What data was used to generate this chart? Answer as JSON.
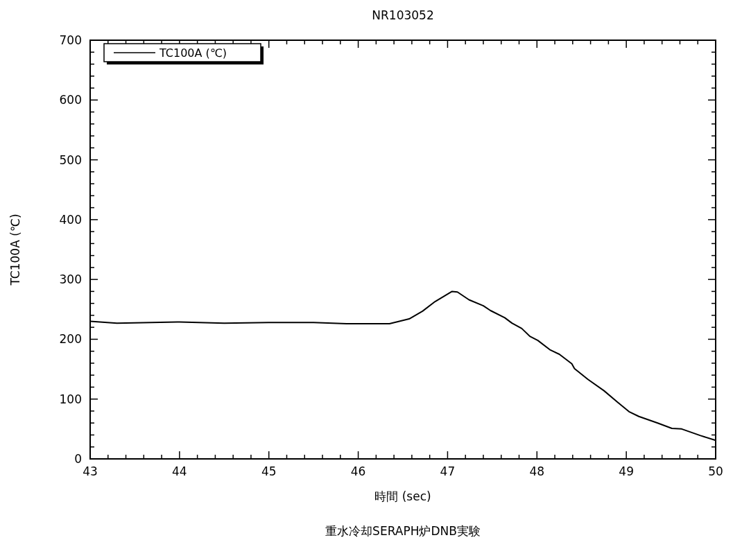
{
  "chart_data": {
    "type": "line",
    "title": "NR103052",
    "xlabel": "時間 (sec)",
    "ylabel": "TC100A (℃)",
    "annotations": [
      "重水冷却SERAPH炉DNB実験"
    ],
    "legend": "top left",
    "grid": false,
    "line_style": "solid",
    "marker": "none",
    "xlim": [
      43,
      50
    ],
    "ylim": [
      0,
      700
    ],
    "xticks": [
      43,
      {
        "value": 43.2,
        "label": null
      },
      {
        "value": 43.4,
        "label": null
      },
      {
        "value": 43.6,
        "label": null
      },
      {
        "value": 43.8,
        "label": null
      },
      44,
      {
        "value": 44.2,
        "label": null
      },
      {
        "value": 44.4,
        "label": null
      },
      {
        "value": 44.6,
        "label": null
      },
      {
        "value": 44.8,
        "label": null
      },
      45,
      {
        "value": 45.2,
        "label": null
      },
      {
        "value": 45.4,
        "label": null
      },
      {
        "value": 45.6,
        "label": null
      },
      {
        "value": 45.8,
        "label": null
      },
      46,
      {
        "value": 46.2,
        "label": null
      },
      {
        "value": 46.4,
        "label": null
      },
      {
        "value": 46.6,
        "label": null
      },
      {
        "value": 46.8,
        "label": null
      },
      47,
      {
        "value": 47.2,
        "label": null
      },
      {
        "value": 47.4,
        "label": null
      },
      {
        "value": 47.6,
        "label": null
      },
      {
        "value": 47.8,
        "label": null
      },
      48,
      {
        "value": 48.2,
        "label": null
      },
      {
        "value": 48.4,
        "label": null
      },
      {
        "value": 48.6,
        "label": null
      },
      {
        "value": 48.8,
        "label": null
      },
      49,
      {
        "value": 49.2,
        "label": null
      },
      {
        "value": 49.4,
        "label": null
      },
      {
        "value": 49.6,
        "label": null
      },
      {
        "value": 49.8,
        "label": null
      },
      50
    ],
    "yticks": [
      0,
      {
        "value": 20,
        "label": null
      },
      {
        "value": 40,
        "label": null
      },
      {
        "value": 60,
        "label": null
      },
      {
        "value": 80,
        "label": null
      },
      100,
      {
        "value": 120,
        "label": null
      },
      {
        "value": 140,
        "label": null
      },
      {
        "value": 160,
        "label": null
      },
      {
        "value": 180,
        "label": null
      },
      200,
      {
        "value": 220,
        "label": null
      },
      {
        "value": 240,
        "label": null
      },
      {
        "value": 260,
        "label": null
      },
      {
        "value": 280,
        "label": null
      },
      300,
      {
        "value": 320,
        "label": null
      },
      {
        "value": 340,
        "label": null
      },
      {
        "value": 360,
        "label": null
      },
      {
        "value": 380,
        "label": null
      },
      400,
      {
        "value": 420,
        "label": null
      },
      {
        "value": 440,
        "label": null
      },
      {
        "value": 460,
        "label": null
      },
      {
        "value": 480,
        "label": null
      },
      500,
      {
        "value": 520,
        "label": null
      },
      {
        "value": 540,
        "label": null
      },
      {
        "value": 560,
        "label": null
      },
      {
        "value": 580,
        "label": null
      },
      600,
      {
        "value": 620,
        "label": null
      },
      {
        "value": 640,
        "label": null
      },
      {
        "value": 660,
        "label": null
      },
      {
        "value": 680,
        "label": null
      },
      700
    ],
    "x": [
      43,
      43.3,
      44,
      44.5,
      45,
      45.5,
      45.87,
      46.35,
      46.57,
      46.72,
      46.86,
      47.05,
      47.11,
      47.24,
      47.4,
      47.48,
      47.64,
      47.72,
      47.83,
      47.92,
      48.01,
      48.15,
      48.25,
      48.39,
      48.42,
      48.57,
      48.75,
      48.9,
      49.03,
      49.14,
      49.35,
      49.51,
      49.62,
      49.83,
      50
    ],
    "series": [
      {
        "name": "TC100A (℃)",
        "color": "#000000",
        "values": [
          230,
          227,
          229,
          227,
          228,
          228,
          226,
          226,
          234,
          247,
          263,
          280,
          279,
          266,
          256,
          248,
          236,
          227,
          218,
          205,
          198,
          182,
          175,
          159,
          151,
          133,
          114,
          95,
          79,
          71,
          60,
          51,
          50,
          39,
          31
        ]
      }
    ]
  }
}
